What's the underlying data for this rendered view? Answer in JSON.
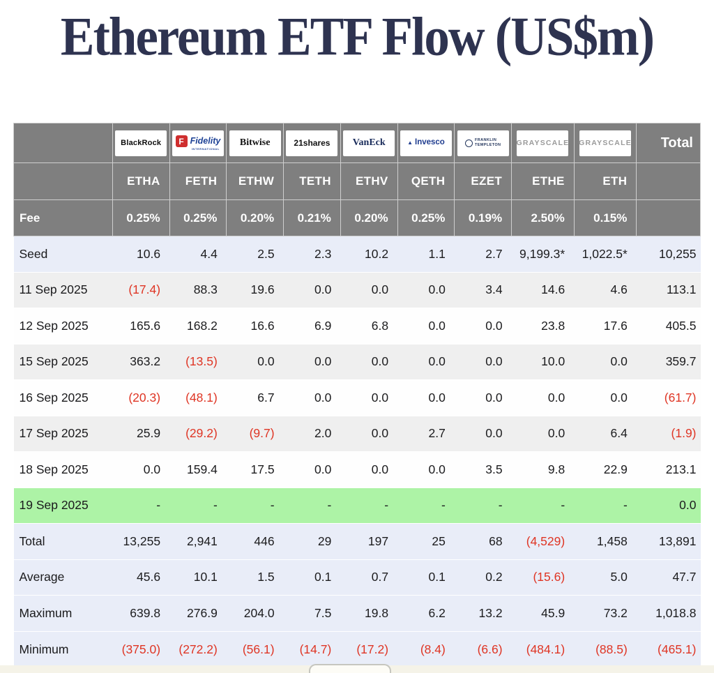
{
  "page": {
    "title": "Ethereum ETF Flow (US$m)"
  },
  "colors": {
    "title_navy": "#2e3350",
    "header_gray": "#7f7f7f",
    "band_blue": "#e9edf8",
    "stripe_gray": "#efefef",
    "highlight_green": "#adf3a6",
    "negative_red": "#df3524",
    "page_cream": "#f5f3e8"
  },
  "chart_data": {
    "type": "table",
    "title": "Ethereum ETF Flow (US$m)",
    "providers": [
      {
        "id": "blackrock",
        "logo_text": "BlackRock",
        "style": "blackrock"
      },
      {
        "id": "fidelity",
        "logo_text": "Fidelity",
        "logo_subtext": "INTERNATIONAL",
        "style": "fidelity"
      },
      {
        "id": "bitwise",
        "logo_text": "Bitwise",
        "style": "bitwise"
      },
      {
        "id": "21shares",
        "logo_text": "21shares",
        "style": "shares21"
      },
      {
        "id": "vaneck",
        "logo_text": "VanEck",
        "style": "vaneck"
      },
      {
        "id": "invesco",
        "logo_text": "Invesco",
        "style": "invesco"
      },
      {
        "id": "franklin-templeton",
        "logo_text": "FRANKLIN\nTEMPLETON",
        "style": "franklin"
      },
      {
        "id": "grayscale-ethe",
        "logo_text": "GRAYSCALE",
        "style": "grayscale"
      },
      {
        "id": "grayscale-eth",
        "logo_text": "GRAYSCALE",
        "style": "grayscale"
      }
    ],
    "total_header": "Total",
    "tickers": [
      "ETHA",
      "FETH",
      "ETHW",
      "TETH",
      "ETHV",
      "QETH",
      "EZET",
      "ETHE",
      "ETH"
    ],
    "fee_label": "Fee",
    "fees": [
      "0.25%",
      "0.25%",
      "0.20%",
      "0.21%",
      "0.20%",
      "0.25%",
      "0.19%",
      "2.50%",
      "0.15%"
    ],
    "rows": [
      {
        "label": "Seed",
        "type": "seed",
        "values": [
          "10.6",
          "4.4",
          "2.5",
          "2.3",
          "10.2",
          "1.1",
          "2.7",
          "9,199.3*",
          "1,022.5*"
        ],
        "total": "10,255"
      },
      {
        "label": "11 Sep 2025",
        "type": "stripe",
        "values": [
          "(17.4)",
          "88.3",
          "19.6",
          "0.0",
          "0.0",
          "0.0",
          "3.4",
          "14.6",
          "4.6"
        ],
        "total": "113.1"
      },
      {
        "label": "12 Sep 2025",
        "type": "plain",
        "values": [
          "165.6",
          "168.2",
          "16.6",
          "6.9",
          "6.8",
          "0.0",
          "0.0",
          "23.8",
          "17.6"
        ],
        "total": "405.5"
      },
      {
        "label": "15 Sep 2025",
        "type": "stripe",
        "values": [
          "363.2",
          "(13.5)",
          "0.0",
          "0.0",
          "0.0",
          "0.0",
          "0.0",
          "10.0",
          "0.0"
        ],
        "total": "359.7"
      },
      {
        "label": "16 Sep 2025",
        "type": "plain",
        "values": [
          "(20.3)",
          "(48.1)",
          "6.7",
          "0.0",
          "0.0",
          "0.0",
          "0.0",
          "0.0",
          "0.0"
        ],
        "total": "(61.7)"
      },
      {
        "label": "17 Sep 2025",
        "type": "stripe",
        "values": [
          "25.9",
          "(29.2)",
          "(9.7)",
          "2.0",
          "0.0",
          "2.7",
          "0.0",
          "0.0",
          "6.4"
        ],
        "total": "(1.9)"
      },
      {
        "label": "18 Sep 2025",
        "type": "plain",
        "values": [
          "0.0",
          "159.4",
          "17.5",
          "0.0",
          "0.0",
          "0.0",
          "3.5",
          "9.8",
          "22.9"
        ],
        "total": "213.1"
      },
      {
        "label": "19 Sep 2025",
        "type": "highlight",
        "values": [
          "-",
          "-",
          "-",
          "-",
          "-",
          "-",
          "-",
          "-",
          "-"
        ],
        "total": "0.0"
      },
      {
        "label": "Total",
        "type": "summary",
        "values": [
          "13,255",
          "2,941",
          "446",
          "29",
          "197",
          "25",
          "68",
          "(4,529)",
          "1,458"
        ],
        "total": "13,891"
      },
      {
        "label": "Average",
        "type": "summary",
        "values": [
          "45.6",
          "10.1",
          "1.5",
          "0.1",
          "0.7",
          "0.1",
          "0.2",
          "(15.6)",
          "5.0"
        ],
        "total": "47.7"
      },
      {
        "label": "Maximum",
        "type": "summary",
        "values": [
          "639.8",
          "276.9",
          "204.0",
          "7.5",
          "19.8",
          "6.2",
          "13.2",
          "45.9",
          "73.2"
        ],
        "total": "1,018.8"
      },
      {
        "label": "Minimum",
        "type": "summary",
        "values": [
          "(375.0)",
          "(272.2)",
          "(56.1)",
          "(14.7)",
          "(17.2)",
          "(8.4)",
          "(6.6)",
          "(484.1)",
          "(88.5)"
        ],
        "total": "(465.1)"
      }
    ]
  }
}
